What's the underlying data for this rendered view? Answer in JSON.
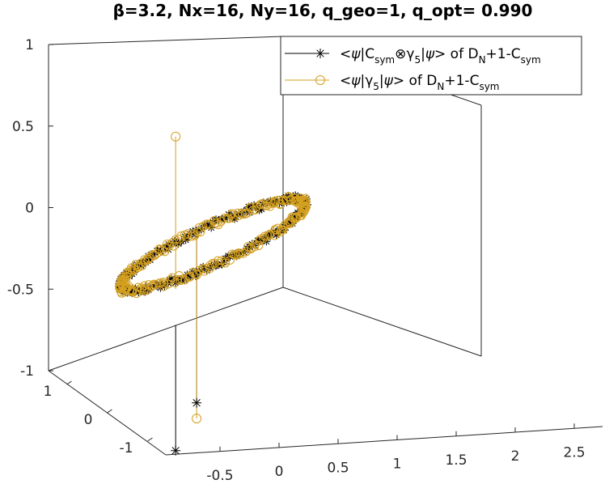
{
  "chart_data": {
    "type": "scatter",
    "title": "β=3.2, Nx=16, Ny=16, q_geo=1, q_opt= 0.990",
    "xlabel": "",
    "ylabel": "",
    "zlabel": "",
    "xlim": [
      -1,
      2.5
    ],
    "ylim": [
      -1.5,
      1.5
    ],
    "zlim": [
      -1,
      1
    ],
    "grid": false,
    "legend_position": "top-right",
    "x_ticks": [
      "-0.5",
      "0",
      "0.5",
      "1",
      "1.5",
      "2",
      "2.5"
    ],
    "y_ticks": [
      "1",
      "0",
      "-1"
    ],
    "z_ticks": [
      "1",
      "0.5",
      "0",
      "-0.5",
      "-1"
    ],
    "ring": {
      "center": [
        1.0,
        0.0,
        0.0
      ],
      "radius": 1.0
    },
    "series": [
      {
        "name": "<ψ|Csym⊗γ5|ψ> of DN+1-Csym",
        "legend_parts": [
          "<",
          "ψ",
          "|C",
          "sym",
          "⊗γ",
          "5",
          "|",
          "ψ",
          "> of D",
          "N",
          "+1-C",
          "sym"
        ],
        "marker": "*",
        "color": "#000000",
        "ring_points": 260,
        "outliers": [
          {
            "x": -0.05,
            "y": 1.0,
            "z": -1.15,
            "stem_top": -0.08
          },
          {
            "x": 1.3,
            "y": -1.0,
            "z": -1.08,
            "stem_top": -0.28
          }
        ]
      },
      {
        "name": "<ψ|γ5|ψ> of DN+1-Csym",
        "legend_parts": [
          "<",
          "ψ",
          "|γ",
          "5",
          "|",
          "ψ",
          "> of D",
          "N",
          "+1-C",
          "sym"
        ],
        "marker": "o",
        "color": "#d4a020",
        "ring_points": 260,
        "outliers": [
          {
            "x": -0.05,
            "y": 1.0,
            "z": -1.25,
            "stem_top": -0.05
          },
          {
            "x": 1.3,
            "y": -1.0,
            "z": 0.92,
            "stem_top": -0.05
          }
        ]
      }
    ]
  }
}
